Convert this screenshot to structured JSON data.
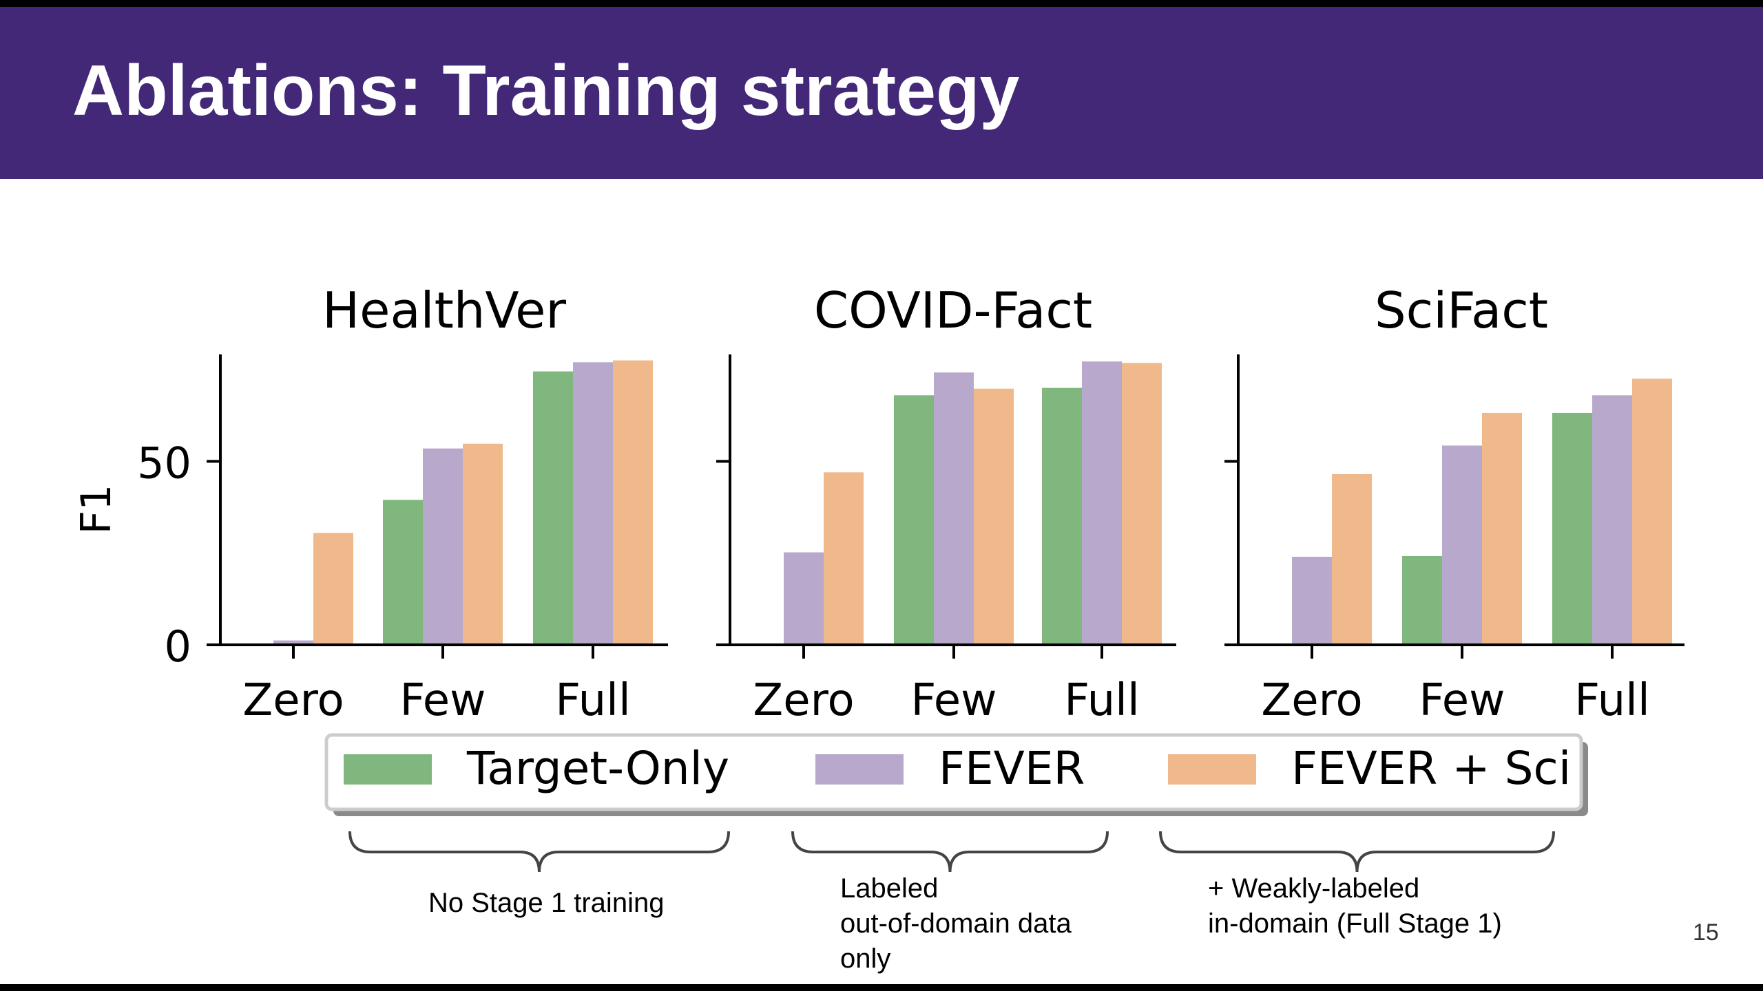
{
  "slide": {
    "title": "Ablations: Training strategy",
    "page_number": "15"
  },
  "chart_data": {
    "type": "bar",
    "ylabel": "F1",
    "ylim": [
      0,
      81
    ],
    "yticks": [
      0,
      50
    ],
    "categories": [
      "Zero",
      "Few",
      "Full"
    ],
    "legend": {
      "placement": "bottom",
      "entries": [
        {
          "name": "Target-Only",
          "color": "#7fb77e"
        },
        {
          "name": "FEVER",
          "color": "#b8a9cc"
        },
        {
          "name": "FEVER + Sci",
          "color": "#efb98c"
        }
      ]
    },
    "panels": [
      {
        "title": "HealthVer",
        "show_ylabel": true,
        "series": [
          {
            "name": "Target-Only",
            "values": [
              0,
              39.5,
              74.5
            ]
          },
          {
            "name": "FEVER",
            "values": [
              1.2,
              53.5,
              77
            ]
          },
          {
            "name": "FEVER + Sci",
            "values": [
              30.5,
              54.8,
              77.5
            ]
          }
        ]
      },
      {
        "title": "COVID-Fact",
        "show_ylabel": false,
        "series": [
          {
            "name": "Target-Only",
            "values": [
              0,
              68,
              70
            ]
          },
          {
            "name": "FEVER",
            "values": [
              25.2,
              74.2,
              77.2
            ]
          },
          {
            "name": "FEVER + Sci",
            "values": [
              47,
              69.8,
              76.8
            ]
          }
        ]
      },
      {
        "title": "SciFact",
        "show_ylabel": false,
        "series": [
          {
            "name": "Target-Only",
            "values": [
              0,
              24.2,
              63.2
            ]
          },
          {
            "name": "FEVER",
            "values": [
              24,
              54.3,
              68
            ]
          },
          {
            "name": "FEVER + Sci",
            "values": [
              46.5,
              63.2,
              72.5
            ]
          }
        ]
      }
    ]
  },
  "annotations": [
    {
      "lines": [
        "No Stage 1 training"
      ]
    },
    {
      "lines": [
        "Labeled",
        "out-of-domain data",
        "only"
      ]
    },
    {
      "lines": [
        "+ Weakly-labeled",
        "in-domain (Full Stage 1)"
      ]
    }
  ]
}
